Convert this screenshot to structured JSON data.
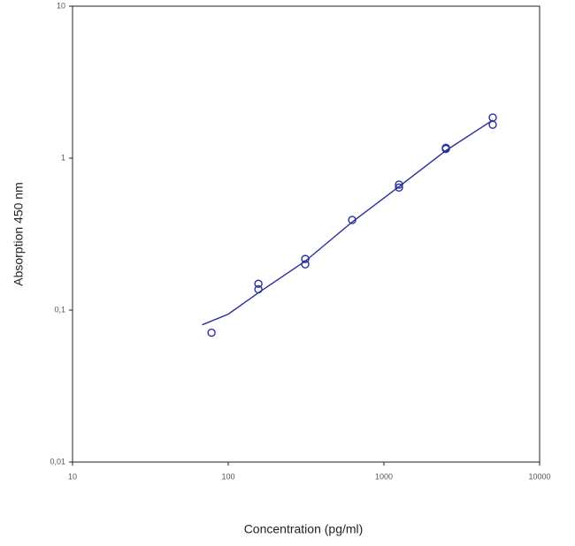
{
  "chart_data": {
    "type": "scatter",
    "xlabel": "Concentration (pg/ml)",
    "ylabel": "Absorption 450 nm",
    "xscale": "log",
    "yscale": "log",
    "xlim": [
      10,
      10000
    ],
    "ylim": [
      0.01,
      10
    ],
    "xticks": [
      10,
      100,
      1000,
      10000
    ],
    "yticks": [
      {
        "value": 0.01,
        "label": "0,01"
      },
      {
        "value": 0.1,
        "label": "0,1"
      },
      1,
      10
    ],
    "points": {
      "color": "#2a2f9a",
      "x": [
        78.125,
        156.25,
        156.25,
        312.5,
        312.5,
        625,
        1250,
        1250,
        2500,
        2500,
        5000,
        5000
      ],
      "y": [
        0.071,
        0.149,
        0.137,
        0.217,
        0.2,
        0.392,
        0.67,
        0.64,
        1.17,
        1.15,
        1.85,
        1.66
      ]
    },
    "fit": {
      "color": "#2a2f9a",
      "x": [
        68,
        100,
        156,
        312,
        625,
        1250,
        2500,
        5000
      ],
      "y": [
        0.08,
        0.094,
        0.13,
        0.21,
        0.38,
        0.65,
        1.12,
        1.78
      ]
    }
  }
}
